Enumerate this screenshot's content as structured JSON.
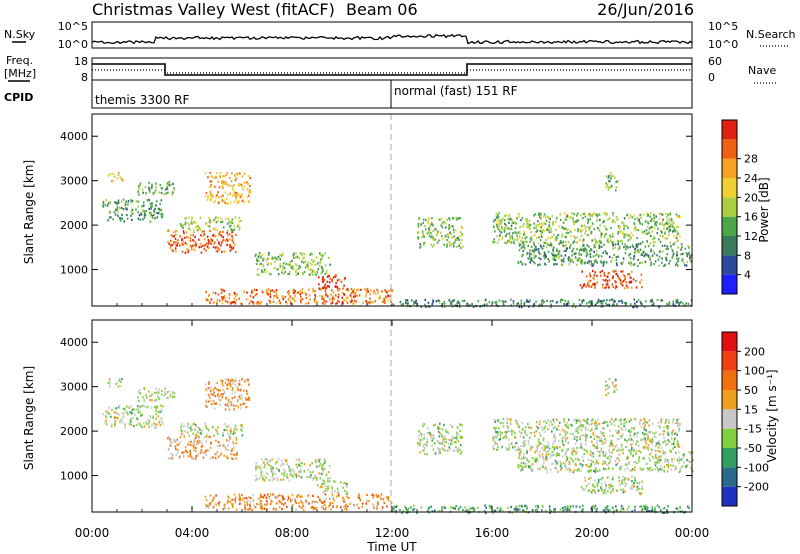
{
  "header": {
    "station": "Christmas Valley West (fitACF)",
    "beam": "Beam 06",
    "date": "26/Jun/2016"
  },
  "top_panels": {
    "nsky": {
      "label": "N.Sky",
      "right_label": "N.Search",
      "y_top": "10^5",
      "y_bottom": "10^0",
      "r_top": "10^5",
      "r_bottom": "10^0"
    },
    "freq": {
      "label_line1": "Freq.",
      "label_line2": "[MHz]",
      "right_label": "Nave",
      "y_top": "18",
      "y_bottom": "8",
      "r_top": "60",
      "r_bottom": "0"
    },
    "cpid": {
      "label": "CPID",
      "program_1": "themis 3300 RF",
      "program_2": "normal (fast) 151 RF",
      "switch_hour": 11.95
    }
  },
  "chart_data": [
    {
      "type": "heatmap",
      "name": "power",
      "ylabel": "Slant Range [km]",
      "xlim_hours": [
        0,
        24
      ],
      "ylim_km": [
        180,
        4500
      ],
      "y_ticks": [
        1000,
        2000,
        3000,
        4000
      ],
      "colorbar": {
        "label": "Power [dB]",
        "ticks": [
          "4",
          "8",
          "12",
          "16",
          "20",
          "24",
          "28"
        ],
        "colors": [
          "#1e1eff",
          "#2a4a9c",
          "#3a7a5a",
          "#4aa84a",
          "#a8d040",
          "#f0d030",
          "#f8a020",
          "#f06010",
          "#e02010"
        ]
      },
      "regions": [
        {
          "t0": 0.4,
          "t1": 2.8,
          "r0": 2100,
          "r1": 2600,
          "level": 0.35
        },
        {
          "t0": 1.8,
          "t1": 3.3,
          "r0": 2700,
          "r1": 3000,
          "level": 0.4
        },
        {
          "t0": 0.6,
          "t1": 1.2,
          "r0": 3000,
          "r1": 3200,
          "level": 0.6
        },
        {
          "t0": 3.0,
          "t1": 5.8,
          "r0": 1400,
          "r1": 1900,
          "level": 0.85
        },
        {
          "t0": 3.5,
          "t1": 6.0,
          "r0": 1900,
          "r1": 2200,
          "level": 0.5
        },
        {
          "t0": 4.5,
          "t1": 6.3,
          "r0": 2500,
          "r1": 3200,
          "level": 0.7
        },
        {
          "t0": 6.5,
          "t1": 9.5,
          "r0": 900,
          "r1": 1400,
          "level": 0.45
        },
        {
          "t0": 4.5,
          "t1": 12.0,
          "r0": 250,
          "r1": 600,
          "level": 0.8
        },
        {
          "t0": 9.0,
          "t1": 10.2,
          "r0": 600,
          "r1": 900,
          "level": 0.95
        },
        {
          "t0": 12.0,
          "t1": 24.0,
          "r0": 180,
          "r1": 350,
          "level": 0.3
        },
        {
          "t0": 13.0,
          "t1": 14.8,
          "r0": 1500,
          "r1": 2200,
          "level": 0.45
        },
        {
          "t0": 16.0,
          "t1": 23.5,
          "r0": 1600,
          "r1": 2300,
          "level": 0.45
        },
        {
          "t0": 17.0,
          "t1": 24.0,
          "r0": 1100,
          "r1": 1600,
          "level": 0.35
        },
        {
          "t0": 19.5,
          "t1": 22.0,
          "r0": 600,
          "r1": 1000,
          "level": 0.85
        },
        {
          "t0": 20.5,
          "t1": 21.0,
          "r0": 2800,
          "r1": 3200,
          "level": 0.4
        }
      ]
    },
    {
      "type": "heatmap",
      "name": "velocity",
      "ylabel": "Slant Range [km]",
      "xlabel": "Time UT",
      "x_ticks": [
        "00:00",
        "04:00",
        "08:00",
        "12:00",
        "16:00",
        "20:00",
        "00:00"
      ],
      "xlim_hours": [
        0,
        24
      ],
      "ylim_km": [
        180,
        4500
      ],
      "y_ticks": [
        1000,
        2000,
        3000,
        4000
      ],
      "colorbar": {
        "label": "Velocity [m s⁻¹]",
        "ticks": [
          "200",
          "100",
          "50",
          "15",
          "-15",
          "-50",
          "-100",
          "-200"
        ],
        "colors": [
          "#2030c0",
          "#2a6a8a",
          "#30a060",
          "#80d040",
          "#c8c8c8",
          "#f0a020",
          "#f07010",
          "#f04010",
          "#e01010"
        ]
      },
      "regions": [
        {
          "t0": 0.4,
          "t1": 2.8,
          "r0": 2100,
          "r1": 2600,
          "level": 0.45
        },
        {
          "t0": 1.8,
          "t1": 3.3,
          "r0": 2700,
          "r1": 3000,
          "level": 0.45
        },
        {
          "t0": 0.6,
          "t1": 1.2,
          "r0": 3000,
          "r1": 3200,
          "level": 0.45
        },
        {
          "t0": 3.0,
          "t1": 5.8,
          "r0": 1400,
          "r1": 1900,
          "level": 0.62
        },
        {
          "t0": 3.5,
          "t1": 6.0,
          "r0": 1900,
          "r1": 2200,
          "level": 0.45
        },
        {
          "t0": 4.5,
          "t1": 6.3,
          "r0": 2500,
          "r1": 3200,
          "level": 0.62
        },
        {
          "t0": 6.5,
          "t1": 9.5,
          "r0": 900,
          "r1": 1400,
          "level": 0.45
        },
        {
          "t0": 4.5,
          "t1": 12.0,
          "r0": 250,
          "r1": 600,
          "level": 0.66
        },
        {
          "t0": 9.0,
          "t1": 10.2,
          "r0": 600,
          "r1": 900,
          "level": 0.45
        },
        {
          "t0": 12.0,
          "t1": 24.0,
          "r0": 180,
          "r1": 350,
          "level": 0.3
        },
        {
          "t0": 13.0,
          "t1": 14.8,
          "r0": 1500,
          "r1": 2200,
          "level": 0.45
        },
        {
          "t0": 16.0,
          "t1": 23.5,
          "r0": 1600,
          "r1": 2300,
          "level": 0.45
        },
        {
          "t0": 17.0,
          "t1": 24.0,
          "r0": 1100,
          "r1": 1600,
          "level": 0.45
        },
        {
          "t0": 19.5,
          "t1": 22.0,
          "r0": 600,
          "r1": 1000,
          "level": 0.45
        },
        {
          "t0": 20.5,
          "t1": 21.0,
          "r0": 2800,
          "r1": 3200,
          "level": 0.45
        }
      ]
    }
  ]
}
